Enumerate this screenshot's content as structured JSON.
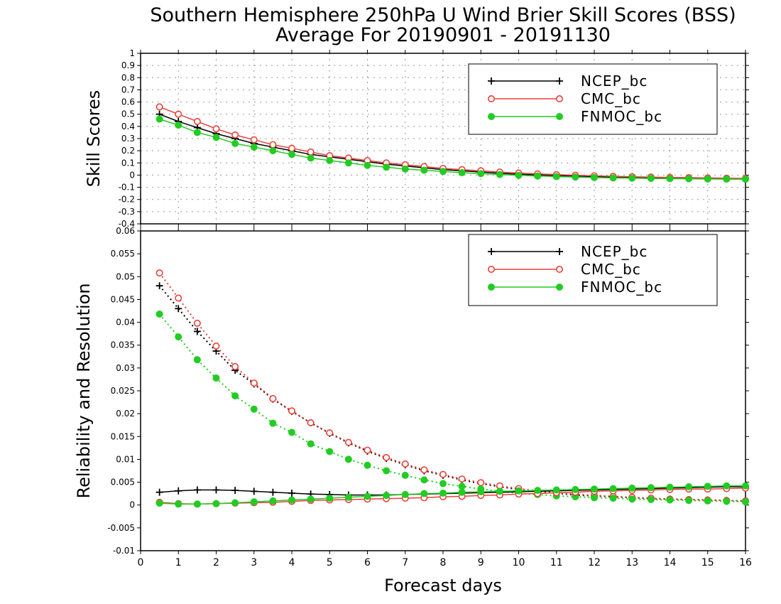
{
  "title_line1": "Southern Hemisphere 250hPa U Wind Brier Skill Scores (BSS)",
  "title_line2": "Average For 20190901 - 20191130",
  "xlabel": "Forecast days",
  "colors": {
    "NCEP_bc": "#000000",
    "CMC_bc": "#e8413c",
    "FNMOC_bc": "#22cc22"
  },
  "chart_data": [
    {
      "type": "line",
      "panel": "top",
      "ylabel": "Skill Scores",
      "ylim": [
        -0.4,
        1
      ],
      "yticks": [
        "-0.4",
        "-0.3",
        "-0.2",
        "-0.1",
        "0",
        "0.1",
        "0.2",
        "0.3",
        "0.4",
        "0.5",
        "0.6",
        "0.7",
        "0.8",
        "0.9",
        "1"
      ],
      "xlim": [
        0,
        16
      ],
      "xticks": [
        "0",
        "1",
        "2",
        "3",
        "4",
        "5",
        "6",
        "7",
        "8",
        "9",
        "10",
        "11",
        "12",
        "13",
        "14",
        "15",
        "16"
      ],
      "grid": true,
      "legend": "top-right",
      "x": [
        0.5,
        1,
        1.5,
        2,
        2.5,
        3,
        3.5,
        4,
        4.5,
        5,
        5.5,
        6,
        6.5,
        7,
        7.5,
        8,
        8.5,
        9,
        9.5,
        10,
        10.5,
        11,
        11.5,
        12,
        12.5,
        13,
        13.5,
        14,
        14.5,
        15,
        15.5,
        16
      ],
      "series": [
        {
          "name": "NCEP_bc",
          "marker": "plus",
          "values": [
            0.5,
            0.44,
            0.39,
            0.34,
            0.3,
            0.26,
            0.23,
            0.2,
            0.17,
            0.15,
            0.13,
            0.11,
            0.09,
            0.075,
            0.06,
            0.045,
            0.035,
            0.025,
            0.015,
            0.008,
            0.002,
            -0.003,
            -0.008,
            -0.012,
            -0.015,
            -0.018,
            -0.02,
            -0.022,
            -0.025,
            -0.027,
            -0.028,
            -0.03
          ]
        },
        {
          "name": "CMC_bc",
          "marker": "open-circle",
          "values": [
            0.56,
            0.5,
            0.44,
            0.38,
            0.33,
            0.29,
            0.25,
            0.22,
            0.19,
            0.16,
            0.14,
            0.12,
            0.1,
            0.085,
            0.07,
            0.055,
            0.045,
            0.035,
            0.025,
            0.017,
            0.01,
            0.004,
            -0.001,
            -0.006,
            -0.01,
            -0.013,
            -0.016,
            -0.019,
            -0.021,
            -0.023,
            -0.025,
            -0.027
          ]
        },
        {
          "name": "FNMOC_bc",
          "marker": "filled-circle",
          "values": [
            0.46,
            0.41,
            0.35,
            0.31,
            0.26,
            0.23,
            0.2,
            0.17,
            0.14,
            0.12,
            0.1,
            0.08,
            0.065,
            0.05,
            0.04,
            0.03,
            0.02,
            0.012,
            0.005,
            -0.002,
            -0.008,
            -0.012,
            -0.016,
            -0.02,
            -0.023,
            -0.025,
            -0.027,
            -0.029,
            -0.03,
            -0.032,
            -0.033,
            -0.034
          ]
        }
      ]
    },
    {
      "type": "line",
      "panel": "bottom",
      "ylabel": "Reliability and Resolution",
      "ylim": [
        -0.01,
        0.06
      ],
      "yticks": [
        "-0.01",
        "-0.005",
        "0",
        "0.005",
        "0.01",
        "0.015",
        "0.02",
        "0.025",
        "0.03",
        "0.035",
        "0.04",
        "0.045",
        "0.05",
        "0.055",
        "0.06"
      ],
      "xlim": [
        0,
        16
      ],
      "xticks": [
        "0",
        "1",
        "2",
        "3",
        "4",
        "5",
        "6",
        "7",
        "8",
        "9",
        "10",
        "11",
        "12",
        "13",
        "14",
        "15",
        "16"
      ],
      "grid": false,
      "legend": "top-right",
      "x": [
        0.5,
        1,
        1.5,
        2,
        2.5,
        3,
        3.5,
        4,
        4.5,
        5,
        5.5,
        6,
        6.5,
        7,
        7.5,
        8,
        8.5,
        9,
        9.5,
        10,
        10.5,
        11,
        11.5,
        12,
        12.5,
        13,
        13.5,
        14,
        14.5,
        15,
        15.5,
        16
      ],
      "series": [
        {
          "name": "NCEP_bc",
          "marker": "plus",
          "style": "dotted",
          "values": [
            0.048,
            0.043,
            0.038,
            0.0337,
            0.0295,
            0.0265,
            0.0232,
            0.0205,
            0.018,
            0.0157,
            0.0136,
            0.0118,
            0.0102,
            0.0088,
            0.0075,
            0.0065,
            0.0055,
            0.0047,
            0.004,
            0.0034,
            0.003,
            0.0026,
            0.0022,
            0.002,
            0.0018,
            0.0016,
            0.0014,
            0.0013,
            0.0012,
            0.0011,
            0.001,
            0.0009
          ]
        },
        {
          "name": "CMC_bc",
          "marker": "open-circle",
          "style": "dotted",
          "values": [
            0.0508,
            0.0453,
            0.0398,
            0.0348,
            0.0303,
            0.0267,
            0.0233,
            0.0206,
            0.018,
            0.0158,
            0.0137,
            0.012,
            0.0104,
            0.009,
            0.0077,
            0.0067,
            0.0057,
            0.0049,
            0.0042,
            0.0036,
            0.0031,
            0.0027,
            0.0024,
            0.0021,
            0.0019,
            0.0017,
            0.0015,
            0.0013,
            0.0012,
            0.0011,
            0.001,
            0.0009
          ]
        },
        {
          "name": "FNMOC_bc",
          "marker": "filled-circle",
          "style": "dotted",
          "values": [
            0.0418,
            0.0368,
            0.0318,
            0.0278,
            0.0239,
            0.021,
            0.0179,
            0.0159,
            0.0134,
            0.0117,
            0.01,
            0.0087,
            0.0075,
            0.0065,
            0.0055,
            0.0047,
            0.0041,
            0.0035,
            0.003,
            0.0026,
            0.0023,
            0.002,
            0.0018,
            0.0016,
            0.0015,
            0.0013,
            0.0012,
            0.0011,
            0.001,
            0.0009,
            0.0008,
            0.0007
          ]
        },
        {
          "name": "NCEP_bc",
          "marker": "plus",
          "style": "solid",
          "values": [
            0.0028,
            0.0031,
            0.0033,
            0.0033,
            0.0032,
            0.003,
            0.0028,
            0.0026,
            0.0024,
            0.0023,
            0.0022,
            0.0022,
            0.0022,
            0.0023,
            0.0024,
            0.0025,
            0.0026,
            0.0027,
            0.0028,
            0.0029,
            0.003,
            0.0031,
            0.0032,
            0.0033,
            0.0034,
            0.0035,
            0.0036,
            0.0037,
            0.0038,
            0.0039,
            0.004,
            0.004
          ]
        },
        {
          "name": "CMC_bc",
          "marker": "open-circle",
          "style": "solid",
          "values": [
            0.0006,
            0.0003,
            0.0002,
            0.0003,
            0.0004,
            0.0005,
            0.0006,
            0.0008,
            0.001,
            0.0011,
            0.0012,
            0.0013,
            0.0014,
            0.0015,
            0.0016,
            0.0018,
            0.0019,
            0.0021,
            0.0022,
            0.0024,
            0.0025,
            0.0027,
            0.0028,
            0.003,
            0.0031,
            0.0032,
            0.0033,
            0.0034,
            0.0035,
            0.0035,
            0.0036,
            0.0037
          ]
        },
        {
          "name": "FNMOC_bc",
          "marker": "filled-circle",
          "style": "solid",
          "values": [
            0.0004,
            0.0002,
            0.0002,
            0.0003,
            0.0005,
            0.0007,
            0.0009,
            0.0011,
            0.0013,
            0.0015,
            0.0017,
            0.0019,
            0.0021,
            0.0023,
            0.0025,
            0.0026,
            0.0028,
            0.0029,
            0.003,
            0.0031,
            0.0032,
            0.0033,
            0.0034,
            0.0035,
            0.0036,
            0.0037,
            0.0038,
            0.0039,
            0.004,
            0.0041,
            0.0042,
            0.0042
          ]
        }
      ]
    }
  ]
}
